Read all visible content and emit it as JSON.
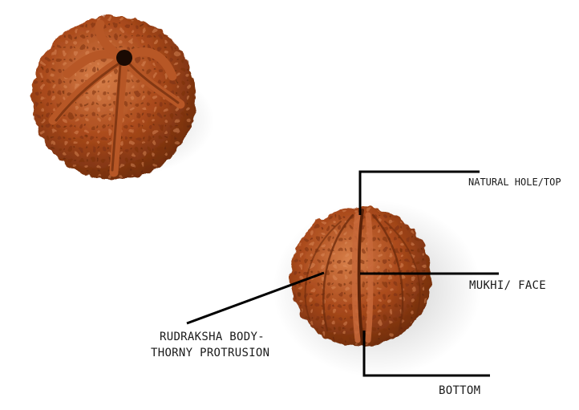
{
  "labels": {
    "natural_hole_top": "NATURAL HOLE/TOP",
    "mukhi_face": "MUKHI/ FACE",
    "body_line1": "RUDRAKSHA BODY-",
    "body_line2": "THORNY PROTRUSION",
    "bottom": "BOTTOM"
  },
  "colors": {
    "bead_dark": "#6e2c0c",
    "bead_mid": "#a9491b",
    "bead_light": "#d8804a",
    "line": "#000000",
    "label_text": "#1a1a1a"
  }
}
